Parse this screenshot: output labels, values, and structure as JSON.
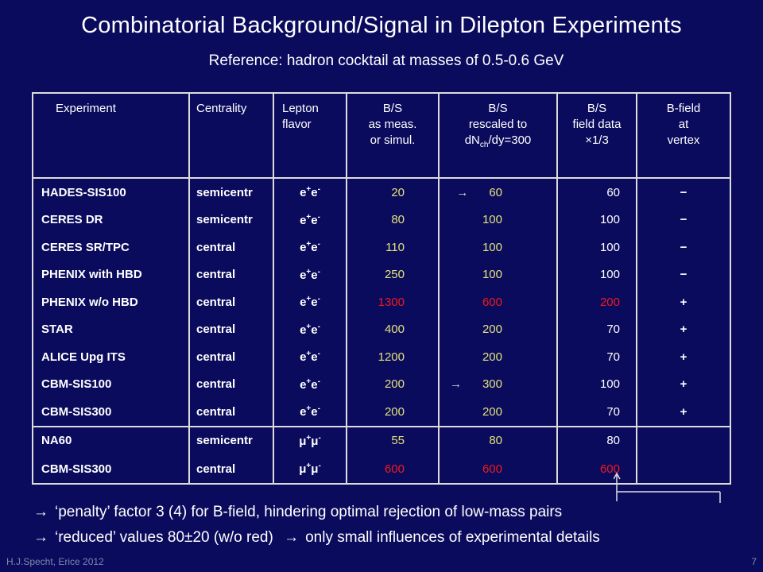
{
  "title": "Combinatorial Background/Signal in Dilepton Experiments",
  "subtitle": "Reference: hadron cocktail at masses of 0.5-0.6 GeV",
  "headers": {
    "experiment": "Experiment",
    "centrality": "Centrality",
    "lepton_line1": "Lepton",
    "lepton_line2": "flavor",
    "bs_meas_line1": "B/S",
    "bs_meas_line2": "as meas.",
    "bs_meas_line3": "or simul.",
    "bs_resc_line1": "B/S",
    "bs_resc_line2": "rescaled to",
    "bs_resc_line3a": "dN",
    "bs_resc_line3sub": "ch",
    "bs_resc_line3b": "/dy=300",
    "bs_field_line1": "B/S",
    "bs_field_line2": "field data",
    "bs_field_line3": "×1/3",
    "bfield_line1": "B-field",
    "bfield_line2": "at",
    "bfield_line3": "vertex"
  },
  "rows": [
    {
      "experiment": "HADES-SIS100",
      "centrality": "semicentr",
      "lepton": "e+e-",
      "bs_meas": "20",
      "bs_rescaled": "60",
      "bs_field": "60",
      "bfield": "−",
      "meas_color": "#e2e27a",
      "resc_color": "#e2e27a",
      "field_color": "#ffffff"
    },
    {
      "experiment": "CERES DR",
      "centrality": "semicentr",
      "lepton": "e+e-",
      "bs_meas": "80",
      "bs_rescaled": "100",
      "bs_field": "100",
      "bfield": "−",
      "meas_color": "#e2e27a",
      "resc_color": "#e2e27a",
      "field_color": "#ffffff"
    },
    {
      "experiment": "CERES SR/TPC",
      "centrality": "central",
      "lepton": "e+e-",
      "bs_meas": "110",
      "bs_rescaled": "100",
      "bs_field": "100",
      "bfield": "−",
      "meas_color": "#e2e27a",
      "resc_color": "#e2e27a",
      "field_color": "#ffffff"
    },
    {
      "experiment": "PHENIX with HBD",
      "centrality": "central",
      "lepton": "e+e-",
      "bs_meas": "250",
      "bs_rescaled": "100",
      "bs_field": "100",
      "bfield": "−",
      "meas_color": "#e2e27a",
      "resc_color": "#e2e27a",
      "field_color": "#ffffff"
    },
    {
      "experiment": "PHENIX  w/o HBD",
      "centrality": "central",
      "lepton": "e+e-",
      "bs_meas": "1300",
      "bs_rescaled": "600",
      "bs_field": "200",
      "bfield": "+",
      "meas_color": "#ee1a1a",
      "resc_color": "#ee1a1a",
      "field_color": "#ee1a1a"
    },
    {
      "experiment": "STAR",
      "centrality": "central",
      "lepton": "e+e-",
      "bs_meas": "400",
      "bs_rescaled": "200",
      "bs_field": "70",
      "bfield": "+",
      "meas_color": "#e2e27a",
      "resc_color": "#e2e27a",
      "field_color": "#ffffff"
    },
    {
      "experiment": "ALICE Upg ITS",
      "centrality": "central",
      "lepton": "e+e-",
      "bs_meas": "1200",
      "bs_rescaled": "200",
      "bs_field": "70",
      "bfield": "+",
      "meas_color": "#e2e27a",
      "resc_color": "#e2e27a",
      "field_color": "#ffffff"
    },
    {
      "experiment": "CBM-SIS100",
      "centrality": "central",
      "lepton": "e+e-",
      "bs_meas": "200",
      "bs_rescaled": "300",
      "bs_field": "100",
      "bfield": "+",
      "meas_color": "#e2e27a",
      "resc_color": "#e2e27a",
      "field_color": "#ffffff"
    },
    {
      "experiment": "CBM-SIS300",
      "centrality": "central",
      "lepton": "e+e-",
      "bs_meas": "200",
      "bs_rescaled": "200",
      "bs_field": "70",
      "bfield": "+",
      "meas_color": "#e2e27a",
      "resc_color": "#e2e27a",
      "field_color": "#ffffff"
    },
    {
      "experiment": "NA60",
      "centrality": "semicentr",
      "lepton": "μ+μ-",
      "bs_meas": "55",
      "bs_rescaled": "80",
      "bs_field": "80",
      "bfield": "",
      "meas_color": "#e2e27a",
      "resc_color": "#e2e27a",
      "field_color": "#ffffff"
    },
    {
      "experiment": "CBM-SIS300",
      "centrality": "central",
      "lepton": "μ+μ-",
      "bs_meas": "600",
      "bs_rescaled": "600",
      "bs_field": "600",
      "bfield": "",
      "meas_color": "#ee1a1a",
      "resc_color": "#ee1a1a",
      "field_color": "#ee1a1a"
    }
  ],
  "bullets": [
    "‘penalty’ factor 3 (4) for B-field, hindering optimal rejection of low-mass pairs",
    "‘reduced’ values 80±20 (w/o red)",
    "only small influences of experimental details"
  ],
  "footer_left": "H.J.Specht, Erice 2012",
  "page_number": "7"
}
